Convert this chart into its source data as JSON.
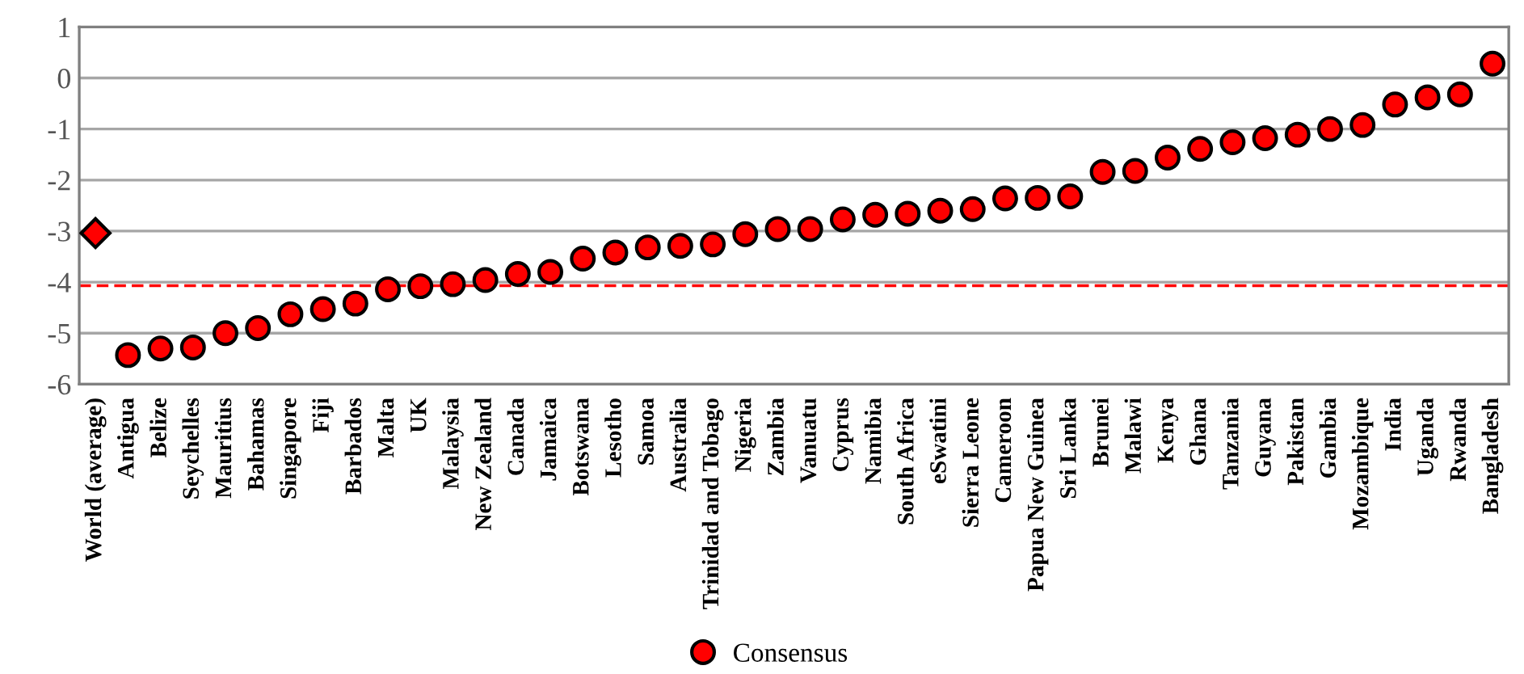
{
  "chart_data": {
    "type": "scatter",
    "categories": [
      "World (average)",
      "Antigua",
      "Belize",
      "Seychelles",
      "Mauritius",
      "Bahamas",
      "Singapore",
      "Fiji",
      "Barbados",
      "Malta",
      "UK",
      "Malaysia",
      "New Zealand",
      "Canada",
      "Jamaica",
      "Botswana",
      "Lesotho",
      "Samoa",
      "Australia",
      "Trinidad and Tobago",
      "Nigeria",
      "Zambia",
      "Vanuatu",
      "Cyprus",
      "Namibia",
      "South Africa",
      "eSwatini",
      "Sierra Leone",
      "Cameroon",
      "Papua New Guinea",
      "Sri Lanka",
      "Brunei",
      "Malawi",
      "Kenya",
      "Ghana",
      "Tanzania",
      "Guyana",
      "Pakistan",
      "Gambia",
      "Mozambique",
      "India",
      "Uganda",
      "Rwanda",
      "Bangladesh"
    ],
    "series": [
      {
        "color": "#ff0000",
        "marker": "diamond",
        "values": [
          -3.04,
          null,
          null,
          null,
          null,
          null,
          null,
          null,
          null,
          null,
          null,
          null,
          null,
          null,
          null,
          null,
          null,
          null,
          null,
          null,
          null,
          null,
          null,
          null,
          null,
          null,
          null,
          null,
          null,
          null,
          null,
          null,
          null,
          null,
          null,
          null,
          null,
          null,
          null,
          null,
          null,
          null,
          null,
          null
        ]
      },
      {
        "name": "Consensus",
        "color": "#ff0000",
        "marker": "circle",
        "values": [
          null,
          -5.43,
          -5.3,
          -5.28,
          -5.0,
          -4.9,
          -4.63,
          -4.53,
          -4.42,
          -4.14,
          -4.08,
          -4.04,
          -3.96,
          -3.84,
          -3.8,
          -3.54,
          -3.42,
          -3.32,
          -3.29,
          -3.26,
          -3.06,
          -2.96,
          -2.96,
          -2.77,
          -2.68,
          -2.66,
          -2.6,
          -2.57,
          -2.36,
          -2.35,
          -2.32,
          -1.84,
          -1.82,
          -1.56,
          -1.39,
          -1.26,
          -1.18,
          -1.11,
          -1.0,
          -0.92,
          -0.52,
          -0.38,
          -0.32,
          0.28
        ]
      }
    ],
    "ylim": [
      -6,
      1
    ],
    "yticks": [
      -6,
      -5,
      -4,
      -3,
      -2,
      -1,
      0,
      1
    ],
    "ref_lines": [
      {
        "axis": "y",
        "value": -4.07,
        "color": "#ff0000",
        "line_style": "dashed"
      }
    ],
    "grid": "y",
    "legend": "bottom"
  }
}
